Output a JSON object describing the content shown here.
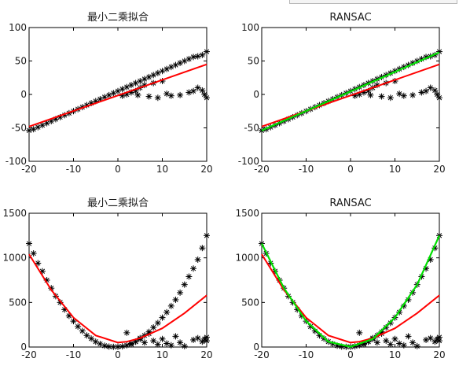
{
  "colors": {
    "data_marker": "#000000",
    "least_squares_fit": "#ff0000",
    "ransac_fit": "#00e000"
  },
  "chart_data": [
    {
      "type": "scatter",
      "title": "最小二乘拟合",
      "xlim": [
        -20,
        20
      ],
      "ylim": [
        -100,
        100
      ],
      "xticks": [
        -20,
        -10,
        0,
        10,
        20
      ],
      "yticks": [
        -100,
        -50,
        0,
        50,
        100
      ],
      "grid": false,
      "series": [
        {
          "kind": "points",
          "marker": "*",
          "color": "#000000",
          "x": [
            -20,
            -19,
            -18,
            -17,
            -16,
            -15,
            -14,
            -13,
            -12,
            -11,
            -10,
            -9,
            -8,
            -7,
            -6,
            -5,
            -4,
            -3,
            -2,
            -1,
            0,
            1,
            2,
            3,
            4,
            5,
            6,
            7,
            8,
            9,
            10,
            11,
            12,
            13,
            14,
            15,
            16,
            17,
            18,
            19,
            20,
            1,
            2,
            3,
            4,
            4.5,
            5,
            6,
            7,
            8,
            9,
            10,
            11,
            12,
            14,
            16,
            17,
            18,
            19,
            19.5,
            20
          ],
          "y": [
            -54,
            -52,
            -49,
            -46,
            -43,
            -40,
            -37,
            -34,
            -31,
            -28,
            -25,
            -22,
            -19,
            -16,
            -13,
            -10,
            -7,
            -4,
            -1,
            2,
            5,
            8,
            11,
            14,
            17,
            20,
            23,
            26,
            29,
            32,
            35,
            38,
            41,
            44,
            47,
            50,
            53,
            56,
            57,
            59,
            64,
            -2,
            0,
            3,
            5,
            -1,
            10,
            14,
            -3,
            17,
            -5,
            20,
            1,
            -2,
            -1,
            3,
            5,
            10,
            6,
            0,
            -5
          ]
        },
        {
          "kind": "line",
          "color": "#ff0000",
          "x": [
            -20,
            20
          ],
          "y": [
            -48,
            45
          ]
        }
      ]
    },
    {
      "type": "scatter",
      "title": "RANSAC",
      "xlim": [
        -20,
        20
      ],
      "ylim": [
        -100,
        100
      ],
      "xticks": [
        -20,
        -10,
        0,
        10,
        20
      ],
      "yticks": [
        -100,
        -50,
        0,
        50,
        100
      ],
      "grid": false,
      "series": [
        {
          "kind": "points",
          "marker": "*",
          "color": "#000000",
          "x": [
            -20,
            -19,
            -18,
            -17,
            -16,
            -15,
            -14,
            -13,
            -12,
            -11,
            -10,
            -9,
            -8,
            -7,
            -6,
            -5,
            -4,
            -3,
            -2,
            -1,
            0,
            1,
            2,
            3,
            4,
            5,
            6,
            7,
            8,
            9,
            10,
            11,
            12,
            13,
            14,
            15,
            16,
            17,
            18,
            19,
            20,
            1,
            2,
            3,
            4,
            4.5,
            5,
            6,
            7,
            8,
            9,
            10,
            11,
            12,
            14,
            16,
            17,
            18,
            19,
            19.5,
            20
          ],
          "y": [
            -54,
            -52,
            -49,
            -46,
            -43,
            -40,
            -37,
            -34,
            -31,
            -28,
            -25,
            -22,
            -19,
            -16,
            -13,
            -10,
            -7,
            -4,
            -1,
            2,
            5,
            8,
            11,
            14,
            17,
            20,
            23,
            26,
            29,
            32,
            35,
            38,
            41,
            44,
            47,
            50,
            53,
            56,
            57,
            59,
            64,
            -2,
            0,
            3,
            5,
            -1,
            10,
            14,
            -3,
            17,
            -5,
            20,
            1,
            -2,
            -1,
            3,
            5,
            10,
            6,
            0,
            -5
          ]
        },
        {
          "kind": "line",
          "color": "#ff0000",
          "x": [
            -20,
            20
          ],
          "y": [
            -48,
            45
          ]
        },
        {
          "kind": "line",
          "color": "#00e000",
          "x": [
            -20,
            20
          ],
          "y": [
            -54,
            63
          ]
        }
      ]
    },
    {
      "type": "scatter",
      "title": "最小二乘拟合",
      "xlim": [
        -20,
        20
      ],
      "ylim": [
        0,
        1500
      ],
      "xticks": [
        -20,
        -10,
        0,
        10,
        20
      ],
      "yticks": [
        0,
        500,
        1000,
        1500
      ],
      "grid": false,
      "series": [
        {
          "kind": "points",
          "marker": "*",
          "color": "#000000",
          "x": [
            -20,
            -19,
            -18,
            -17,
            -16,
            -15,
            -14,
            -13,
            -12,
            -11,
            -10,
            -9,
            -8,
            -7,
            -6,
            -5,
            -4,
            -3,
            -2,
            -1,
            0,
            1,
            2,
            3,
            4,
            5,
            6,
            7,
            8,
            9,
            10,
            11,
            12,
            13,
            14,
            15,
            16,
            17,
            18,
            19,
            20,
            2,
            3,
            4,
            5,
            6,
            7,
            8,
            9,
            10,
            11,
            12,
            13,
            14,
            15,
            17,
            18,
            19,
            19.5,
            20,
            20
          ],
          "y": [
            1160,
            1050,
            940,
            850,
            750,
            660,
            570,
            500,
            420,
            350,
            290,
            230,
            180,
            130,
            95,
            60,
            35,
            15,
            5,
            2,
            3,
            8,
            20,
            40,
            60,
            90,
            130,
            170,
            220,
            270,
            330,
            390,
            460,
            530,
            610,
            700,
            790,
            880,
            980,
            1110,
            1250,
            160,
            30,
            60,
            100,
            50,
            150,
            70,
            30,
            90,
            40,
            20,
            120,
            50,
            10,
            80,
            100,
            60,
            90,
            110,
            70
          ],
          "note": ""
        },
        {
          "kind": "line",
          "color": "#ff0000",
          "x": [
            -20,
            -15,
            -10,
            -5,
            0,
            2,
            5,
            10,
            15,
            20
          ],
          "y": [
            1040,
            640,
            330,
            130,
            50,
            60,
            100,
            210,
            380,
            580
          ]
        }
      ]
    },
    {
      "type": "scatter",
      "title": "RANSAC",
      "xlim": [
        -20,
        20
      ],
      "ylim": [
        0,
        1500
      ],
      "xticks": [
        -20,
        -10,
        0,
        10,
        20
      ],
      "yticks": [
        0,
        500,
        1000,
        1500
      ],
      "grid": false,
      "series": [
        {
          "kind": "points",
          "marker": "*",
          "color": "#000000",
          "x": [
            -20,
            -19,
            -18,
            -17,
            -16,
            -15,
            -14,
            -13,
            -12,
            -11,
            -10,
            -9,
            -8,
            -7,
            -6,
            -5,
            -4,
            -3,
            -2,
            -1,
            0,
            1,
            2,
            3,
            4,
            5,
            6,
            7,
            8,
            9,
            10,
            11,
            12,
            13,
            14,
            15,
            16,
            17,
            18,
            19,
            20,
            2,
            3,
            4,
            5,
            6,
            7,
            8,
            9,
            10,
            11,
            12,
            13,
            14,
            15,
            17,
            18,
            19,
            19.5,
            20,
            20
          ],
          "y": [
            1160,
            1050,
            940,
            850,
            750,
            660,
            570,
            500,
            420,
            350,
            290,
            230,
            180,
            130,
            95,
            60,
            35,
            15,
            5,
            2,
            3,
            8,
            20,
            40,
            60,
            90,
            130,
            170,
            220,
            270,
            330,
            390,
            460,
            530,
            610,
            700,
            790,
            880,
            980,
            1110,
            1250,
            160,
            30,
            60,
            100,
            50,
            150,
            70,
            30,
            90,
            40,
            20,
            120,
            50,
            10,
            80,
            100,
            60,
            90,
            110,
            70
          ]
        },
        {
          "kind": "line",
          "color": "#ff0000",
          "x": [
            -20,
            -15,
            -10,
            -5,
            0,
            2,
            5,
            10,
            15,
            20
          ],
          "y": [
            1040,
            640,
            330,
            130,
            50,
            60,
            100,
            210,
            380,
            580
          ]
        },
        {
          "kind": "line",
          "color": "#00e000",
          "x": [
            -20,
            -15,
            -10,
            -5,
            0,
            5,
            10,
            15,
            20
          ],
          "y": [
            1160,
            660,
            290,
            60,
            3,
            90,
            330,
            700,
            1250
          ]
        }
      ]
    }
  ]
}
